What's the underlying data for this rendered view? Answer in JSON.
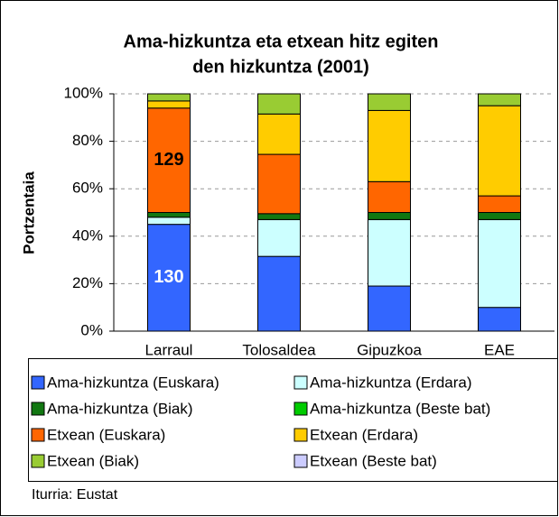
{
  "chart_data": {
    "type": "stacked_bar",
    "title": [
      "Ama-hizkuntza eta etxean hitz egiten",
      "den hizkuntza (2001)"
    ],
    "ylabel": "Portzentaia",
    "source": "Iturria: Eustat",
    "categories": [
      "Larraul",
      "Tolosaldea",
      "Gipuzkoa",
      "EAE"
    ],
    "series": [
      {
        "name": "Ama-hizkuntza (Euskara)",
        "color": "#3366ff",
        "values": [
          45,
          31.5,
          19,
          10
        ]
      },
      {
        "name": "Ama-hizkuntza (Erdara)",
        "color": "#ccffff",
        "values": [
          3,
          15.5,
          28,
          37
        ]
      },
      {
        "name": "Ama-hizkuntza (Biak)",
        "color": "#117711",
        "values": [
          2,
          2.5,
          3,
          3
        ]
      },
      {
        "name": "Ama-hizkuntza (Beste bat)",
        "color": "#00cc00",
        "values": [
          0,
          0,
          0,
          0
        ]
      },
      {
        "name": "Etxean (Euskara)",
        "color": "#ff6600",
        "values": [
          44,
          25,
          13,
          7
        ]
      },
      {
        "name": "Etxean (Erdara)",
        "color": "#ffcc00",
        "values": [
          3,
          17,
          30,
          38
        ]
      },
      {
        "name": "Etxean (Biak)",
        "color": "#99cc33",
        "values": [
          3,
          8.5,
          7,
          5
        ]
      },
      {
        "name": "Etxean (Beste bat)",
        "color": "#ccccff",
        "values": [
          0,
          0,
          0,
          0
        ]
      }
    ],
    "annotations": [
      "130",
      "129"
    ],
    "ylim": [
      0,
      100
    ],
    "yticks": [
      {
        "value": 0,
        "label": "0%"
      },
      {
        "value": 20,
        "label": "20%"
      },
      {
        "value": 40,
        "label": "40%"
      },
      {
        "value": 60,
        "label": "60%"
      },
      {
        "value": 80,
        "label": "80%"
      },
      {
        "value": 100,
        "label": "100%"
      }
    ],
    "grid": true,
    "legend": "bottom"
  }
}
